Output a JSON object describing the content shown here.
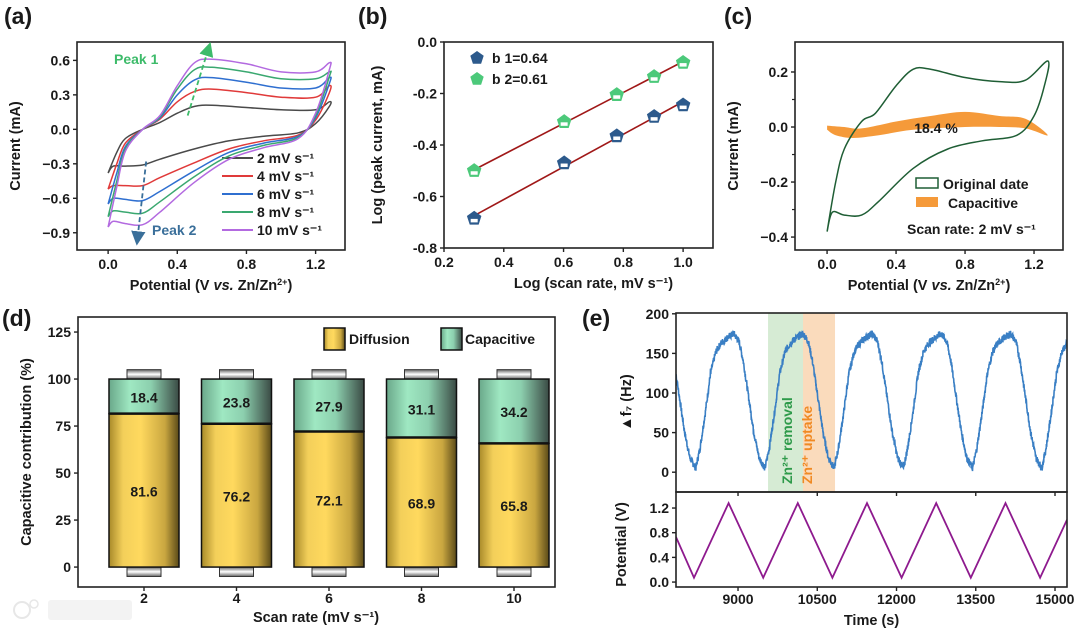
{
  "figure": {
    "panel_labels": [
      "(a)",
      "(b)",
      "(c)",
      "(d)",
      "(e)"
    ],
    "watermark": "大数跨境"
  },
  "chart_data": [
    {
      "panel": "(a)",
      "type": "line",
      "title": "",
      "xlabel": {
        "pre": "Potential (V ",
        "italic": "vs.",
        "post": " Zn/Zn",
        "sup": "2+",
        "end": ")"
      },
      "ylabel": "Current (mA)",
      "xlim": [
        -0.18,
        1.37
      ],
      "ylim": [
        -1.05,
        0.76
      ],
      "xticks": [
        0,
        0.4,
        0.8,
        1.2
      ],
      "xtick_labels": [
        "0.0",
        "0.4",
        "0.8",
        "1.2"
      ],
      "yticks": [
        0.6,
        0.3,
        0,
        -0.3,
        -0.6,
        -0.9
      ],
      "ytick_labels": [
        "0.6",
        "0.3",
        "0.0",
        "−0.3",
        "−0.6",
        "−0.9"
      ],
      "x": [
        0,
        0.05,
        0.1,
        0.2,
        0.3,
        0.4,
        0.5,
        0.6,
        0.8,
        1.0,
        1.2,
        1.28,
        1.28,
        1.2,
        1.1,
        0.9,
        0.7,
        0.5,
        0.3,
        0.2,
        0.1,
        0.03,
        0
      ],
      "series": [
        {
          "name": "2 mV s⁻¹",
          "color": "#4a4a4a",
          "values": [
            -0.38,
            -0.2,
            -0.08,
            0,
            0.06,
            0.14,
            0.2,
            0.21,
            0.19,
            0.17,
            0.17,
            0.24,
            0.2,
            0.05,
            -0.03,
            -0.06,
            -0.1,
            -0.17,
            -0.26,
            -0.31,
            -0.32,
            -0.32,
            -0.38
          ]
        },
        {
          "name": "4 mV s⁻¹",
          "color": "#e03a3a",
          "values": [
            -0.52,
            -0.3,
            -0.12,
            0,
            0.09,
            0.24,
            0.33,
            0.35,
            0.32,
            0.28,
            0.28,
            0.38,
            0.32,
            0.08,
            -0.05,
            -0.1,
            -0.17,
            -0.29,
            -0.42,
            -0.49,
            -0.49,
            -0.49,
            -0.52
          ]
        },
        {
          "name": "6 mV s⁻¹",
          "color": "#2f6fd0",
          "values": [
            -0.65,
            -0.38,
            -0.15,
            0,
            0.1,
            0.3,
            0.43,
            0.45,
            0.41,
            0.36,
            0.36,
            0.45,
            0.4,
            0.1,
            -0.06,
            -0.12,
            -0.2,
            -0.36,
            -0.54,
            -0.62,
            -0.61,
            -0.6,
            -0.65
          ]
        },
        {
          "name": "8 mV s⁻¹",
          "color": "#3aa870",
          "values": [
            -0.76,
            -0.45,
            -0.17,
            0,
            0.11,
            0.35,
            0.52,
            0.54,
            0.5,
            0.44,
            0.44,
            0.5,
            0.46,
            0.12,
            -0.07,
            -0.14,
            -0.23,
            -0.41,
            -0.63,
            -0.73,
            -0.72,
            -0.71,
            -0.76
          ]
        },
        {
          "name": "10 mV s⁻¹",
          "color": "#b36ae0",
          "values": [
            -0.85,
            -0.5,
            -0.19,
            0,
            0.12,
            0.38,
            0.58,
            0.61,
            0.57,
            0.5,
            0.5,
            0.58,
            0.52,
            0.14,
            -0.08,
            -0.16,
            -0.26,
            -0.46,
            -0.72,
            -0.83,
            -0.82,
            -0.8,
            -0.85
          ]
        }
      ],
      "legend_position": "bottom-right",
      "annotations": [
        {
          "text": "Peak 1",
          "color": "#3dbb6a"
        },
        {
          "text": "Peak 2",
          "color": "#3a6f9a"
        }
      ]
    },
    {
      "panel": "(b)",
      "type": "scatter",
      "xlabel": "Log (scan rate, mV s⁻¹)",
      "ylabel": "Log (peak current, mA)",
      "xlim": [
        0.2,
        1.1
      ],
      "ylim": [
        -0.8,
        0
      ],
      "xticks": [
        0.2,
        0.4,
        0.6,
        0.8,
        1.0
      ],
      "xtick_labels": [
        "0.2",
        "0.4",
        "0.6",
        "0.8",
        "1.0"
      ],
      "yticks": [
        0,
        -0.2,
        -0.4,
        -0.6,
        -0.8
      ],
      "ytick_labels": [
        "0.0",
        "-0.2",
        "-0.4",
        "-0.6",
        "-0.8"
      ],
      "x": [
        0.301,
        0.602,
        0.778,
        0.903,
        1.0
      ],
      "series": [
        {
          "name": "b 1=0.64",
          "color": "#2d5a8c",
          "values": [
            -0.685,
            -0.47,
            -0.365,
            -0.29,
            -0.245
          ]
        },
        {
          "name": "b 2=0.61",
          "color": "#4cc97a",
          "values": [
            -0.5,
            -0.31,
            -0.205,
            -0.135,
            -0.08
          ]
        }
      ],
      "fit_line_color": "#a01818",
      "legend_position": "top-left"
    },
    {
      "panel": "(c)",
      "type": "area",
      "xlabel": {
        "pre": "Potential (V ",
        "italic": "vs.",
        "post": " Zn/Zn",
        "sup": "2+",
        "end": ")"
      },
      "ylabel": "Current (mA)",
      "xlim": [
        -0.186,
        1.368
      ],
      "ylim": [
        -0.447,
        0.309
      ],
      "xticks": [
        0,
        0.4,
        0.8,
        1.2
      ],
      "xtick_labels": [
        "0.0",
        "0.4",
        "0.8",
        "1.2"
      ],
      "yticks": [
        0.2,
        0,
        -0.2,
        -0.4
      ],
      "ytick_labels": [
        "0.2",
        "0.0",
        "−0.2",
        "−0.4"
      ],
      "series": [
        {
          "name": "Original date",
          "color": "#1f5e35",
          "x": [
            0,
            0.05,
            0.1,
            0.2,
            0.28,
            0.4,
            0.5,
            0.6,
            0.8,
            1.0,
            1.15,
            1.28,
            1.26,
            1.2,
            1.1,
            0.9,
            0.7,
            0.5,
            0.3,
            0.2,
            0.1,
            0.03,
            0
          ],
          "values": [
            -0.38,
            -0.2,
            -0.08,
            0.02,
            0.05,
            0.15,
            0.21,
            0.21,
            0.18,
            0.165,
            0.17,
            0.24,
            0.15,
            0.04,
            -0.03,
            -0.05,
            -0.08,
            -0.15,
            -0.27,
            -0.32,
            -0.32,
            -0.31,
            -0.38
          ]
        },
        {
          "name": "Capacitive",
          "color": "#f59a3a",
          "x": [
            0,
            0.1,
            0.2,
            0.4,
            0.6,
            0.8,
            1.0,
            1.15,
            1.28,
            1.15,
            1.0,
            0.8,
            0.5,
            0.3,
            0.15,
            0.05,
            0
          ],
          "values": [
            0.005,
            0.0,
            -0.005,
            0.02,
            0.04,
            0.055,
            0.04,
            0.03,
            -0.03,
            -0.005,
            0.0,
            0.0,
            -0.01,
            -0.03,
            -0.04,
            -0.03,
            -0.01
          ]
        }
      ],
      "annotation": "18.4 %",
      "note": "Scan rate: 2 mV s⁻¹",
      "legend_position": "bottom-right"
    },
    {
      "panel": "(d)",
      "type": "bar",
      "stacked": true,
      "xlabel": "Scan rate (mV s⁻¹)",
      "ylabel": "Capacitive contribution (%)",
      "ylim": [
        -10.6,
        133
      ],
      "yticks": [
        0,
        25,
        50,
        75,
        100,
        125
      ],
      "ytick_labels": [
        "0",
        "25",
        "50",
        "75",
        "100",
        "125"
      ],
      "categories": [
        "2",
        "4",
        "6",
        "8",
        "10"
      ],
      "series": [
        {
          "name": "Diffusion",
          "color": "#f3cf5a",
          "values": [
            81.6,
            76.2,
            72.1,
            68.9,
            65.8
          ],
          "labels": [
            "81.6",
            "76.2",
            "72.1",
            "68.9",
            "65.8"
          ]
        },
        {
          "name": "Capacitive",
          "color": "#9fe8c2",
          "values": [
            18.4,
            23.8,
            27.9,
            31.1,
            34.2
          ],
          "labels": [
            "18.4",
            "23.8",
            "27.9",
            "31.1",
            "34.2"
          ]
        }
      ],
      "legend_position": "top-right"
    },
    {
      "panel": "(e)",
      "type": "line",
      "xlabel": "Time (s)",
      "xlim": [
        7826,
        15227
      ],
      "xticks": [
        9000,
        10500,
        12000,
        13500,
        15000
      ],
      "xtick_labels": [
        "9000",
        "10500",
        "12000",
        "13500",
        "15000"
      ],
      "top": {
        "ylabel": "▲f₇ (Hz)",
        "ylim": [
          -25,
          201
        ],
        "yticks": [
          0,
          50,
          100,
          150,
          200
        ],
        "ytick_labels": [
          "0",
          "50",
          "100",
          "150",
          "200"
        ],
        "color": "#3a7fc4",
        "frequency_minima_times_s": [
          6890,
          8200,
          9510,
          10820,
          12130,
          13440,
          14750
        ],
        "cycle_profile": {
          "offset_s": [
            0,
            80,
            180,
            280,
            380,
            480,
            600,
            720,
            820,
            900,
            1000,
            1100,
            1200,
            1310
          ],
          "value_Hz": [
            5,
            30,
            75,
            125,
            152,
            163,
            170,
            175,
            165,
            140,
            95,
            50,
            18,
            5
          ]
        },
        "regions": [
          {
            "label": "Zn²⁺ removal",
            "from": 9568,
            "to": 10230,
            "color": "#cfe8cc",
            "text_color": "#2e9a4a"
          },
          {
            "label": "Zn²⁺ uptake",
            "from": 10230,
            "to": 10836,
            "color": "#f9d5b0",
            "text_color": "#f08a24"
          }
        ]
      },
      "bottom": {
        "ylabel": "Potential (V)",
        "ylim": [
          -0.08,
          1.46
        ],
        "yticks": [
          0.0,
          0.4,
          0.8,
          1.2
        ],
        "ytick_labels": [
          "0.0",
          "0.4",
          "0.8",
          "1.2"
        ],
        "color": "#8e1a8e",
        "time_s": [
          7826,
          8167,
          8822,
          9477,
          10132,
          10787,
          11442,
          12097,
          12752,
          13407,
          14062,
          14717,
          15227
        ],
        "potential_V": [
          0.73,
          0.07,
          1.28,
          0.07,
          1.28,
          0.07,
          1.28,
          0.07,
          1.28,
          0.07,
          1.28,
          0.07,
          1.01
        ]
      }
    }
  ]
}
